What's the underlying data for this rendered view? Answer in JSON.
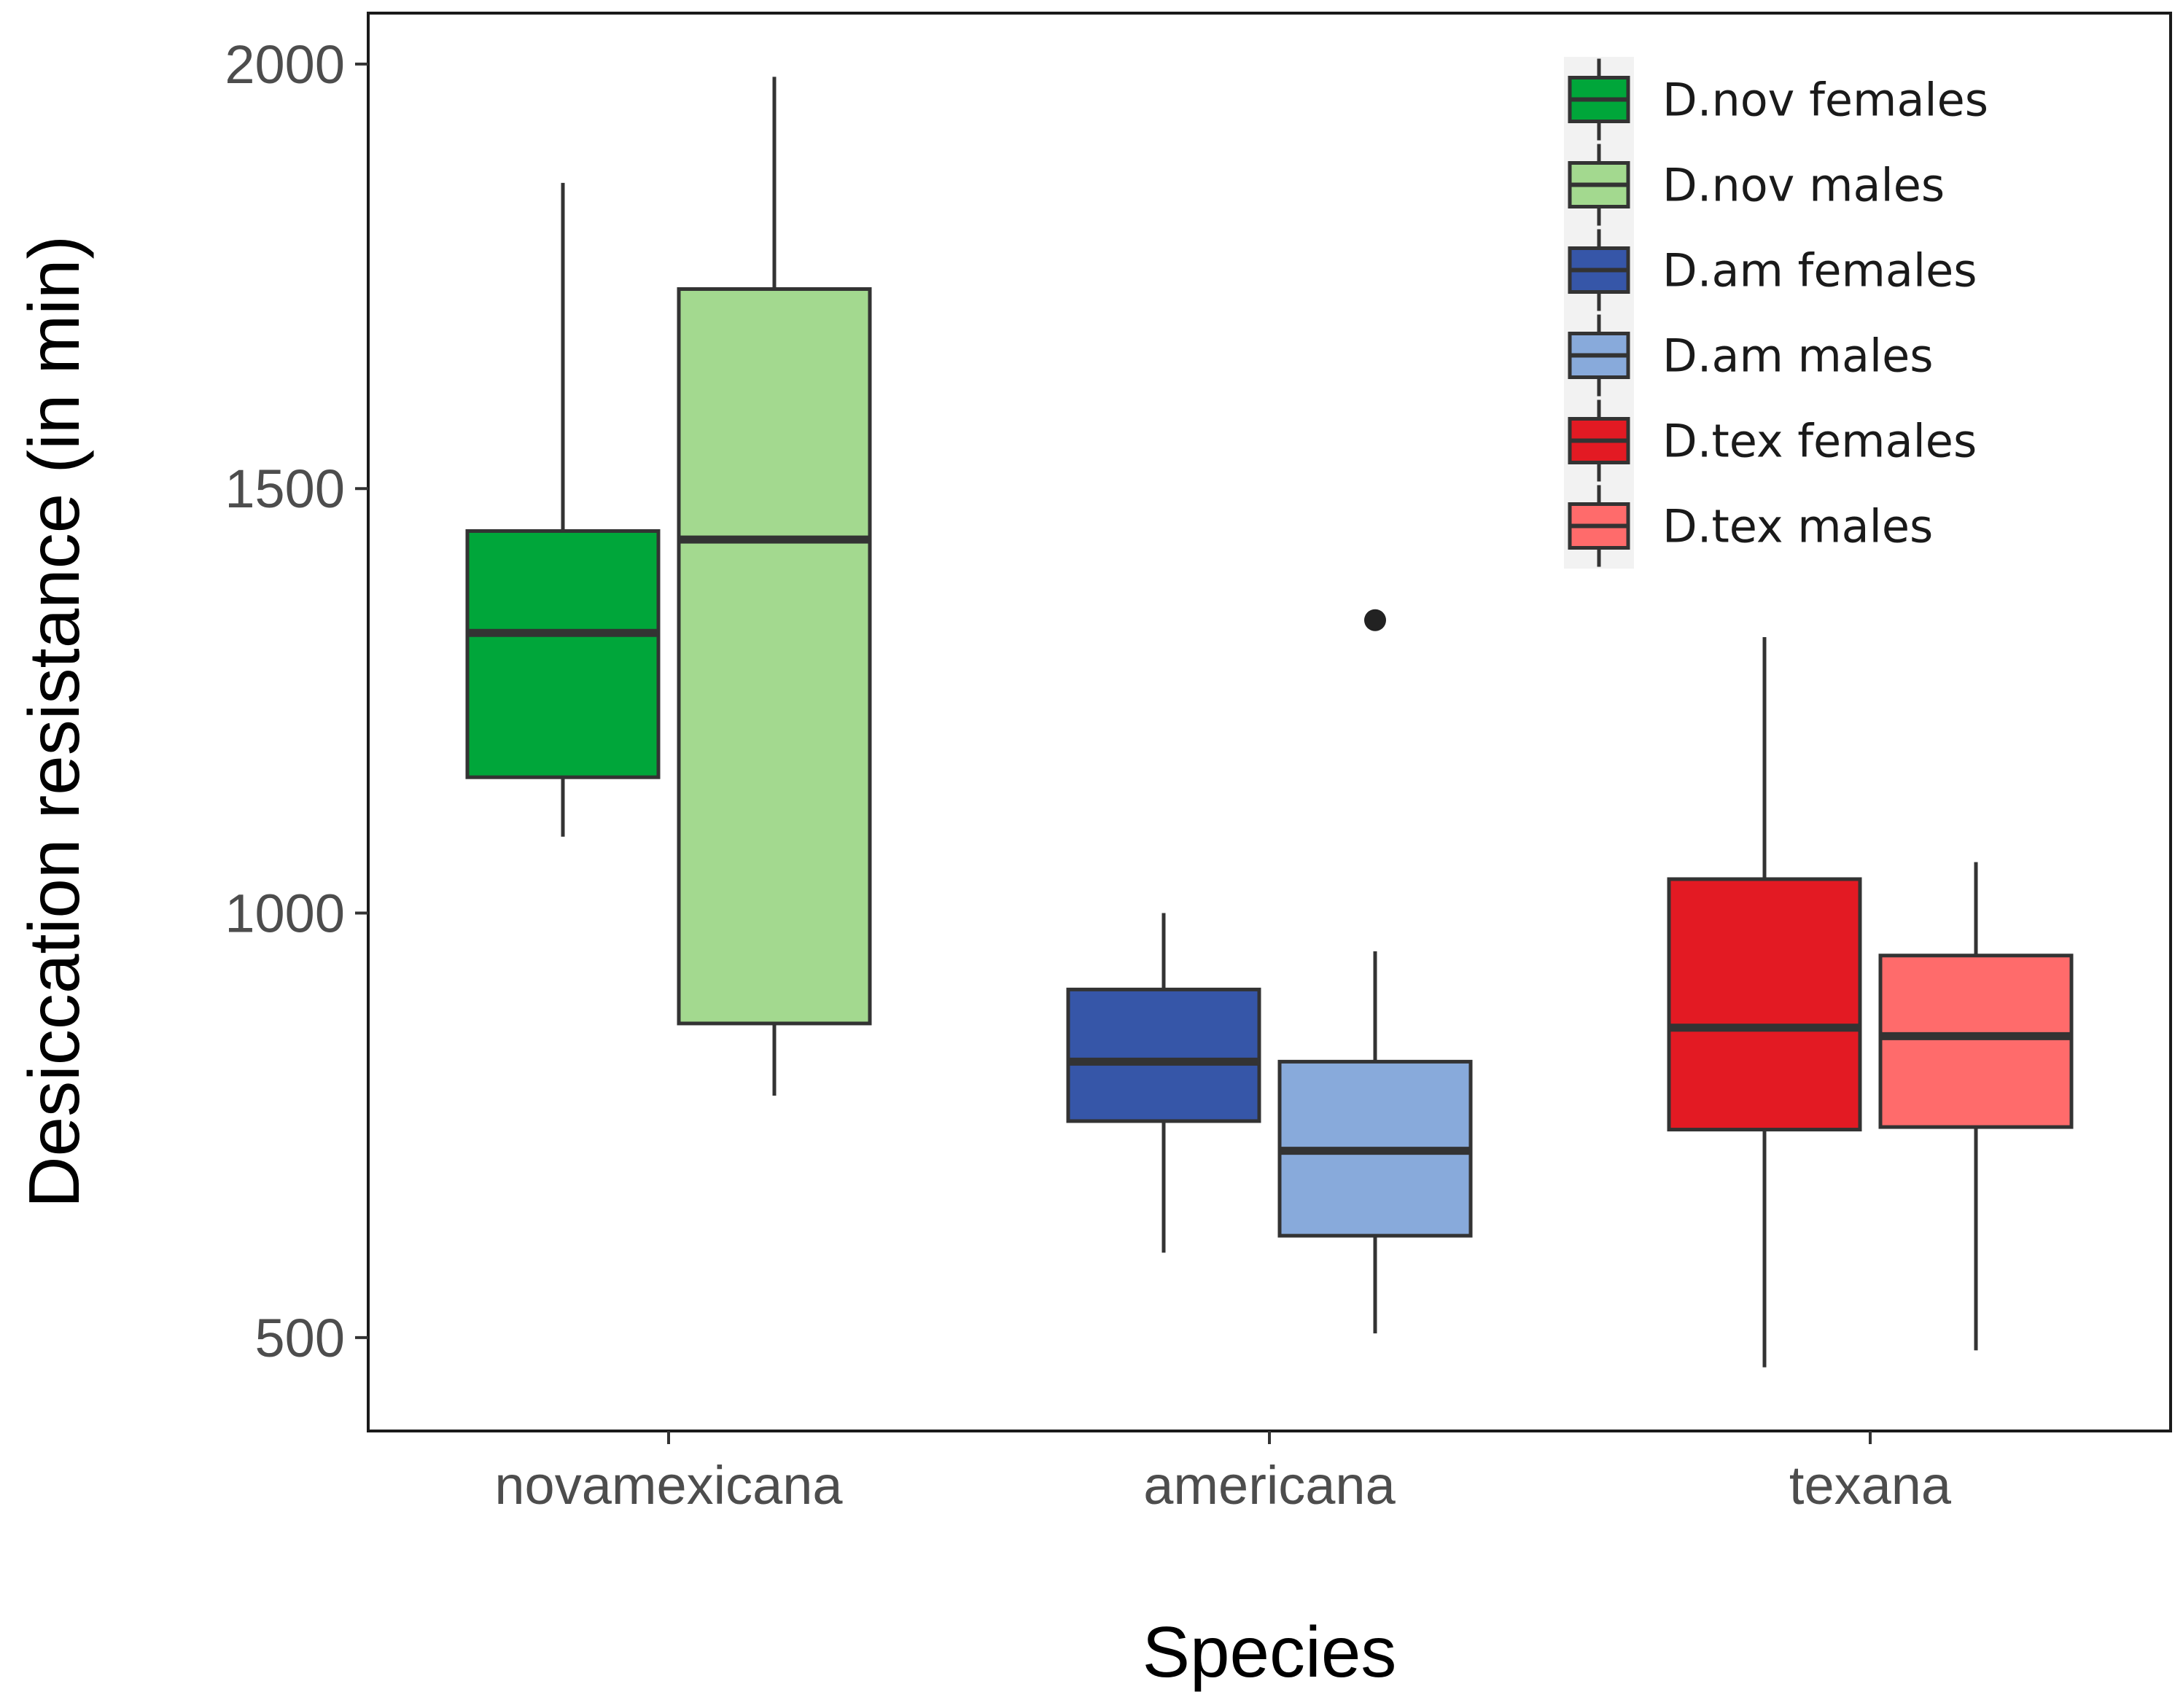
{
  "chart_data": {
    "type": "boxplot",
    "xlabel": "Species",
    "ylabel": "Desiccation resistance (in min)",
    "ylim": [
      390,
      2060
    ],
    "yticks": [
      500,
      1000,
      1500,
      2000
    ],
    "ytick_labels": [
      "500",
      "1000",
      "1500",
      "2000"
    ],
    "categories": [
      "novamexicana",
      "americana",
      "texana"
    ],
    "series": [
      {
        "name": "D.nov females",
        "category": "novamexicana",
        "color": "#00a63a",
        "whisker_low": 1090,
        "q1": 1160,
        "median": 1330,
        "q3": 1450,
        "whisker_high": 1860,
        "outliers": []
      },
      {
        "name": "D.nov males",
        "category": "novamexicana",
        "color": "#a3d98f",
        "whisker_low": 785,
        "q1": 870,
        "median": 1440,
        "q3": 1735,
        "whisker_high": 1985,
        "outliers": []
      },
      {
        "name": "D.am females",
        "category": "americana",
        "color": "#3656a8",
        "whisker_low": 600,
        "q1": 755,
        "median": 825,
        "q3": 910,
        "whisker_high": 1000,
        "outliers": []
      },
      {
        "name": "D.am males",
        "category": "americana",
        "color": "#88aadb",
        "whisker_low": 505,
        "q1": 620,
        "median": 720,
        "q3": 825,
        "whisker_high": 955,
        "outliers": [
          1345
        ]
      },
      {
        "name": "D.tex females",
        "category": "texana",
        "color": "#e31a23",
        "whisker_low": 465,
        "q1": 745,
        "median": 865,
        "q3": 1040,
        "whisker_high": 1325,
        "outliers": []
      },
      {
        "name": "D.tex males",
        "category": "texana",
        "color": "#ff6b6b",
        "whisker_low": 485,
        "q1": 748,
        "median": 855,
        "q3": 950,
        "whisker_high": 1060,
        "outliers": []
      }
    ],
    "legend": {
      "position": "top-right",
      "entries": [
        "D.nov females",
        "D.nov males",
        "D.am females",
        "D.am males",
        "D.tex females",
        "D.tex males"
      ]
    },
    "grid": false
  }
}
